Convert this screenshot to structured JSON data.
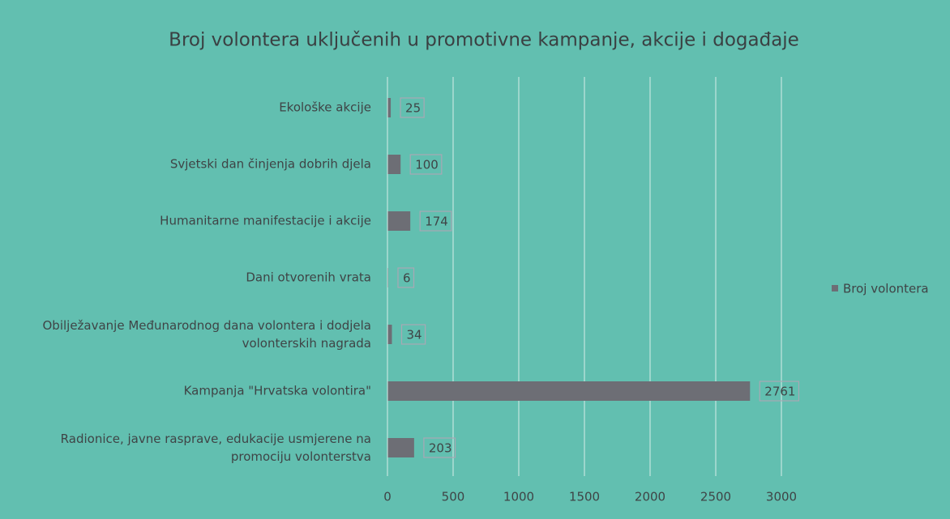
{
  "chart_data": {
    "type": "bar",
    "orientation": "horizontal",
    "title": "Broj volontera uključenih u promotivne kampanje, akcije i događaje",
    "categories": [
      "Ekološke akcije",
      "Svjetski dan činjenja dobrih djela",
      "Humanitarne manifestacije i akcije",
      "Dani otvorenih vrata",
      "Obilježavanje Međunarodnog dana volontera i dodjela volonterskih nagrada",
      "Kampanja \"Hrvatska volontira\"",
      "Radionice, javne rasprave, edukacije usmjerene na promociju volonterstva"
    ],
    "series": [
      {
        "name": "Broj volontera",
        "color": "#6d6e75",
        "values": [
          25,
          100,
          174,
          6,
          34,
          2761,
          203
        ]
      }
    ],
    "xlim": [
      0,
      3000
    ],
    "xticks": [
      0,
      500,
      1000,
      1500,
      2000,
      2500,
      3000
    ],
    "grid": true,
    "legend": "right"
  }
}
